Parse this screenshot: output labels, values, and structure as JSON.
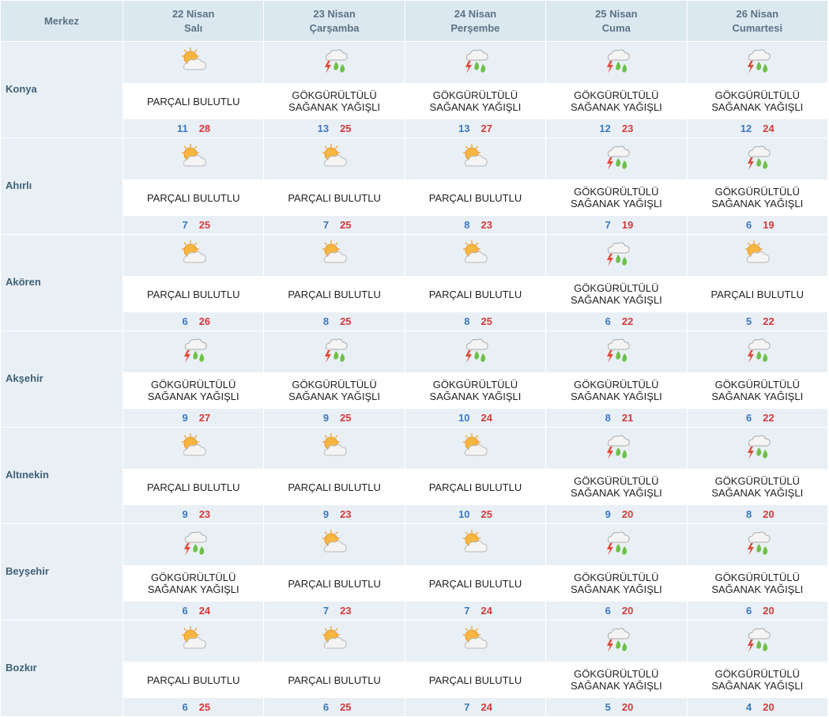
{
  "header": {
    "city_label": "Merkez",
    "days": [
      {
        "date": "22 Nisan",
        "weekday": "Salı"
      },
      {
        "date": "23 Nisan",
        "weekday": "Çarşamba"
      },
      {
        "date": "24 Nisan",
        "weekday": "Perşembe"
      },
      {
        "date": "25 Nisan",
        "weekday": "Cuma"
      },
      {
        "date": "26 Nisan",
        "weekday": "Cumartesi"
      }
    ]
  },
  "conditions": {
    "partly_cloudy": {
      "line1": "PARÇALI BULUTLU",
      "line2": "",
      "icon": "partly-cloudy-icon"
    },
    "thunder_showers": {
      "line1": "GÖKGÜRÜLTÜLÜ",
      "line2": "SAĞANAK YAĞIŞLI",
      "icon": "thunder-showers-icon"
    }
  },
  "colors": {
    "min_temp": "#3b78c2",
    "max_temp": "#d23a3a",
    "header_bg": "#dce8f0",
    "row_bg": "#e9f0f5"
  },
  "rows": [
    {
      "city": "Konya",
      "days": [
        {
          "cond": "partly_cloudy",
          "min": "11",
          "max": "28"
        },
        {
          "cond": "thunder_showers",
          "min": "13",
          "max": "25"
        },
        {
          "cond": "thunder_showers",
          "min": "13",
          "max": "27"
        },
        {
          "cond": "thunder_showers",
          "min": "12",
          "max": "23"
        },
        {
          "cond": "thunder_showers",
          "min": "12",
          "max": "24"
        }
      ]
    },
    {
      "city": "Ahırlı",
      "days": [
        {
          "cond": "partly_cloudy",
          "min": "7",
          "max": "25"
        },
        {
          "cond": "partly_cloudy",
          "min": "7",
          "max": "25"
        },
        {
          "cond": "partly_cloudy",
          "min": "8",
          "max": "23"
        },
        {
          "cond": "thunder_showers",
          "min": "7",
          "max": "19"
        },
        {
          "cond": "thunder_showers",
          "min": "6",
          "max": "19"
        }
      ]
    },
    {
      "city": "Akören",
      "days": [
        {
          "cond": "partly_cloudy",
          "min": "6",
          "max": "26"
        },
        {
          "cond": "partly_cloudy",
          "min": "8",
          "max": "25"
        },
        {
          "cond": "partly_cloudy",
          "min": "8",
          "max": "25"
        },
        {
          "cond": "thunder_showers",
          "min": "6",
          "max": "22"
        },
        {
          "cond": "partly_cloudy",
          "min": "5",
          "max": "22"
        }
      ]
    },
    {
      "city": "Akşehir",
      "days": [
        {
          "cond": "thunder_showers",
          "min": "9",
          "max": "27"
        },
        {
          "cond": "thunder_showers",
          "min": "9",
          "max": "25"
        },
        {
          "cond": "thunder_showers",
          "min": "10",
          "max": "24"
        },
        {
          "cond": "thunder_showers",
          "min": "8",
          "max": "21"
        },
        {
          "cond": "thunder_showers",
          "min": "6",
          "max": "22"
        }
      ]
    },
    {
      "city": "Altınekin",
      "days": [
        {
          "cond": "partly_cloudy",
          "min": "9",
          "max": "23"
        },
        {
          "cond": "partly_cloudy",
          "min": "9",
          "max": "23"
        },
        {
          "cond": "partly_cloudy",
          "min": "10",
          "max": "25"
        },
        {
          "cond": "thunder_showers",
          "min": "9",
          "max": "20"
        },
        {
          "cond": "thunder_showers",
          "min": "8",
          "max": "20"
        }
      ]
    },
    {
      "city": "Beyşehir",
      "days": [
        {
          "cond": "thunder_showers",
          "min": "6",
          "max": "24"
        },
        {
          "cond": "partly_cloudy",
          "min": "7",
          "max": "23"
        },
        {
          "cond": "partly_cloudy",
          "min": "7",
          "max": "24"
        },
        {
          "cond": "thunder_showers",
          "min": "6",
          "max": "20"
        },
        {
          "cond": "thunder_showers",
          "min": "6",
          "max": "20"
        }
      ]
    },
    {
      "city": "Bozkır",
      "days": [
        {
          "cond": "partly_cloudy",
          "min": "6",
          "max": "25"
        },
        {
          "cond": "partly_cloudy",
          "min": "6",
          "max": "25"
        },
        {
          "cond": "partly_cloudy",
          "min": "7",
          "max": "24"
        },
        {
          "cond": "thunder_showers",
          "min": "5",
          "max": "20"
        },
        {
          "cond": "thunder_showers",
          "min": "4",
          "max": "20"
        }
      ]
    }
  ]
}
